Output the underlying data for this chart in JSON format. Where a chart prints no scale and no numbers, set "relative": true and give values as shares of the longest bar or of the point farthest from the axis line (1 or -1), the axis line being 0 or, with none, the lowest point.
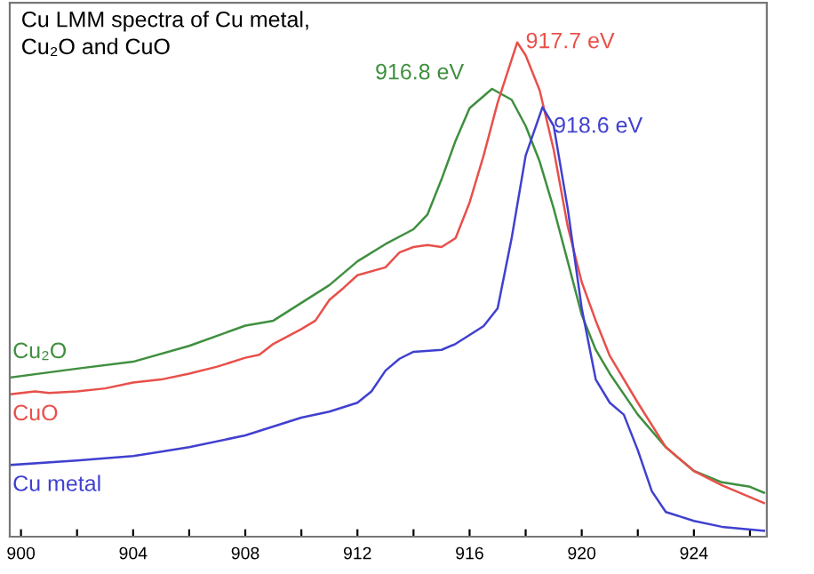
{
  "chart_data": {
    "type": "line",
    "title": "Cu LMM spectra of Cu metal,\nCu₂O and CuO",
    "relative": true,
    "xlim": [
      899.6,
      926.6
    ],
    "xticks": [
      900,
      {
        "value": 902,
        "label": null
      },
      904,
      {
        "value": 906,
        "label": null
      },
      908,
      {
        "value": 910,
        "label": null
      },
      912,
      {
        "value": 914,
        "label": null
      },
      916,
      {
        "value": 918,
        "label": null
      },
      920,
      {
        "value": 922,
        "label": null
      },
      924,
      {
        "value": 926,
        "label": null
      }
    ],
    "grid": false,
    "legend": false,
    "marker": "none",
    "line_style": "solid",
    "series": [
      {
        "name": "Cu₂O",
        "color": "#3f8f3f",
        "x": [
          899.6,
          902,
          904,
          906,
          908,
          909,
          910,
          911,
          912,
          913,
          914,
          914.5,
          915,
          915.5,
          916,
          916.8,
          917.5,
          918,
          918.5,
          919,
          919.5,
          920,
          920.5,
          921,
          922,
          923,
          924,
          925,
          926,
          926.5
        ],
        "values": [
          0.322,
          0.34,
          0.354,
          0.386,
          0.427,
          0.437,
          0.473,
          0.509,
          0.557,
          0.592,
          0.622,
          0.652,
          0.723,
          0.801,
          0.867,
          0.906,
          0.884,
          0.831,
          0.759,
          0.664,
          0.557,
          0.449,
          0.378,
          0.33,
          0.247,
          0.181,
          0.133,
          0.11,
          0.101,
          0.089
        ]
      },
      {
        "name": "CuO",
        "color": "#e8504a",
        "x": [
          899.6,
          900.5,
          901,
          902,
          903,
          904,
          905,
          906,
          907,
          908,
          908.5,
          909,
          910,
          910.5,
          911,
          911.5,
          912,
          913,
          913.5,
          914,
          914.5,
          915,
          915.5,
          916,
          916.5,
          917,
          917.7,
          918,
          918.5,
          919,
          919.5,
          920,
          920.5,
          921,
          922,
          923,
          924,
          925,
          926.5
        ],
        "values": [
          0.288,
          0.294,
          0.291,
          0.294,
          0.3,
          0.312,
          0.318,
          0.33,
          0.344,
          0.362,
          0.368,
          0.39,
          0.42,
          0.437,
          0.479,
          0.503,
          0.529,
          0.545,
          0.575,
          0.586,
          0.59,
          0.586,
          0.604,
          0.676,
          0.771,
          0.878,
          1,
          0.974,
          0.903,
          0.783,
          0.628,
          0.515,
          0.437,
          0.366,
          0.271,
          0.181,
          0.133,
          0.104,
          0.068
        ]
      },
      {
        "name": "Cu metal",
        "color": "#4040d0",
        "x": [
          899.6,
          902,
          904,
          906,
          908,
          910,
          911,
          912,
          912.5,
          913,
          913.5,
          914,
          915,
          915.5,
          916,
          916.5,
          917,
          917.5,
          918,
          918.6,
          919,
          919.5,
          920,
          920.5,
          921,
          921.5,
          922,
          922.5,
          923,
          924,
          925,
          926.5
        ],
        "values": [
          0.145,
          0.154,
          0.163,
          0.181,
          0.205,
          0.241,
          0.253,
          0.271,
          0.294,
          0.336,
          0.36,
          0.374,
          0.378,
          0.39,
          0.408,
          0.426,
          0.462,
          0.604,
          0.771,
          0.869,
          0.831,
          0.664,
          0.462,
          0.318,
          0.271,
          0.247,
          0.175,
          0.092,
          0.05,
          0.032,
          0.02,
          0.012
        ]
      }
    ],
    "annotations": [
      {
        "text": "916.8 eV",
        "x": 916.8,
        "y": 0.906
      },
      {
        "text": "917.7 eV",
        "x": 917.7,
        "y": 1
      },
      {
        "text": "918.6 eV",
        "x": 918.6,
        "y": 0.869
      }
    ]
  }
}
